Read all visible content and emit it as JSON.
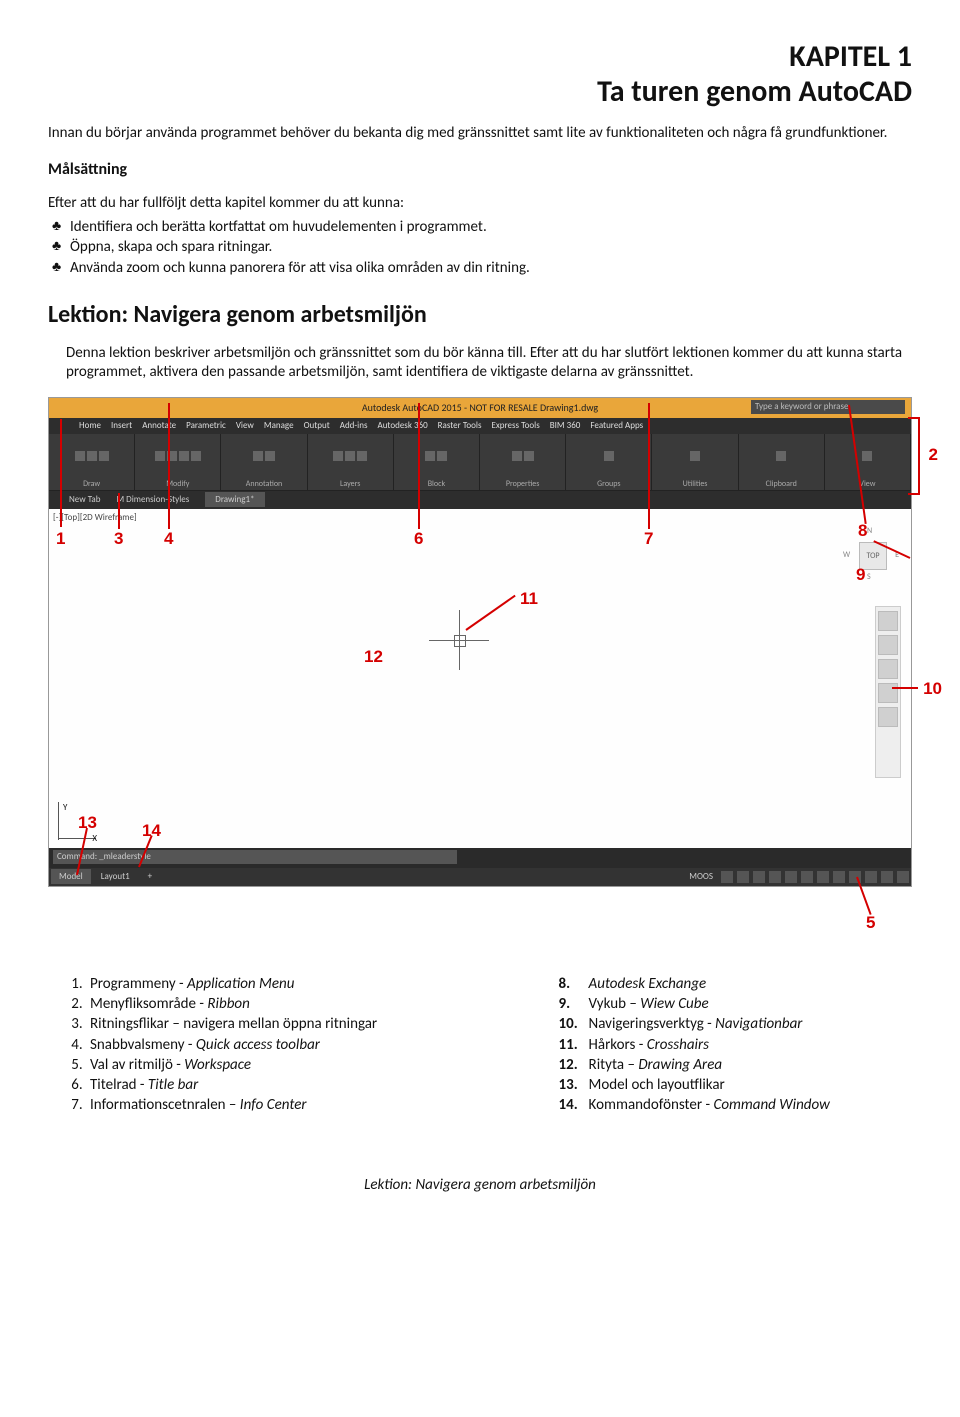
{
  "chapter": {
    "num": "KAPITEL 1",
    "title": "Ta turen genom AutoCAD"
  },
  "intro": "Innan du börjar använda programmet behöver du bekanta dig med gränssnittet samt lite av funktionaliteten och några få grundfunktioner.",
  "goals": {
    "heading": "Målsättning",
    "intro": "Efter att du har fullföljt detta kapitel kommer du att kunna:",
    "items": [
      "Identifiera och berätta kortfattat om huvudelementen i programmet.",
      "Öppna, skapa och spara ritningar.",
      "Använda zoom och kunna panorera för att visa olika områden av din ritning."
    ]
  },
  "lesson": {
    "heading": "Lektion: Navigera genom arbetsmiljön",
    "body": "Denna lektion beskriver arbetsmiljön och gränssnittet som du bör känna till. Efter att du har slutfört lektionen kommer du att kunna starta programmet, aktivera den passande arbetsmiljön, samt identifiera de viktigaste delarna av gränssnittet."
  },
  "screenshot": {
    "title": "Autodesk AutoCAD 2015 - NOT FOR RESALE   Drawing1.dwg",
    "search_placeholder": "Type a keyword or phrase",
    "ribbon_tabs": [
      "Home",
      "Insert",
      "Annotate",
      "Parametric",
      "View",
      "Manage",
      "Output",
      "Add-ins",
      "Autodesk 360",
      "Raster Tools",
      "Express Tools",
      "BIM 360",
      "Featured Apps"
    ],
    "panels": [
      "Draw",
      "Modify",
      "Annotation",
      "Layers",
      "Block",
      "Properties",
      "Groups",
      "Utilities",
      "Clipboard",
      "View"
    ],
    "filetabs": {
      "new": "New Tab",
      "ws": "M Dimension-Styles",
      "active": "Drawing1*"
    },
    "viewport_label": "[-][Top][2D Wireframe]",
    "viewcube": {
      "n": "N",
      "s": "S",
      "e": "E",
      "w": "W",
      "top": "TOP"
    },
    "cmd_text": "Command: _mleaderstyle",
    "modeltab": "Model",
    "layouttab": "Layout1",
    "moos": "MOOS",
    "colors": {
      "titlebar": "#e9a63a",
      "ribbon": "#3a3a3a",
      "annotation": "#d40000",
      "viewport_bg": "#fefefe",
      "statusbar": "#333333"
    },
    "annotations": {
      "1": "1",
      "2": "2",
      "3": "3",
      "4": "4",
      "5": "5",
      "6": "6",
      "7": "7",
      "8": "8",
      "9": "9",
      "10": "10",
      "11": "11",
      "12": "12",
      "13": "13",
      "14": "14"
    }
  },
  "legend": {
    "left_start": 1,
    "left": [
      "Programmeny - <i>Application Menu</i>",
      "Menyfliksområde  - <i>Ribbon</i>",
      "Ritningsflikar – navigera mellan öppna ritningar",
      "Snabbvalsmeny  - <i>Quick access toolbar</i>",
      "Val av ritmiljö  - <i>Workspace</i>",
      "Titelrad  - <i>Title bar</i>",
      "Informationscetnralen – <i>Info Center</i>"
    ],
    "right": [
      {
        "n": "8.",
        "t": "<i>Autodesk Exchange</i>"
      },
      {
        "n": "9.",
        "t": "Vykub – <i>Wiew Cube</i>"
      },
      {
        "n": "10.",
        "t": "Navigeringsverktyg - <i>Navigationbar</i>"
      },
      {
        "n": "11.",
        "t": "Hårkors - <i>Crosshairs</i>"
      },
      {
        "n": "12.",
        "t": "Rityta – <i>Drawing Area</i>"
      },
      {
        "n": "13.",
        "t": "Model och layoutflikar"
      },
      {
        "n": "14.",
        "t": "Kommandofönster - <i>Command Window</i>"
      }
    ]
  },
  "footer": "Lektion: Navigera genom arbetsmiljön"
}
